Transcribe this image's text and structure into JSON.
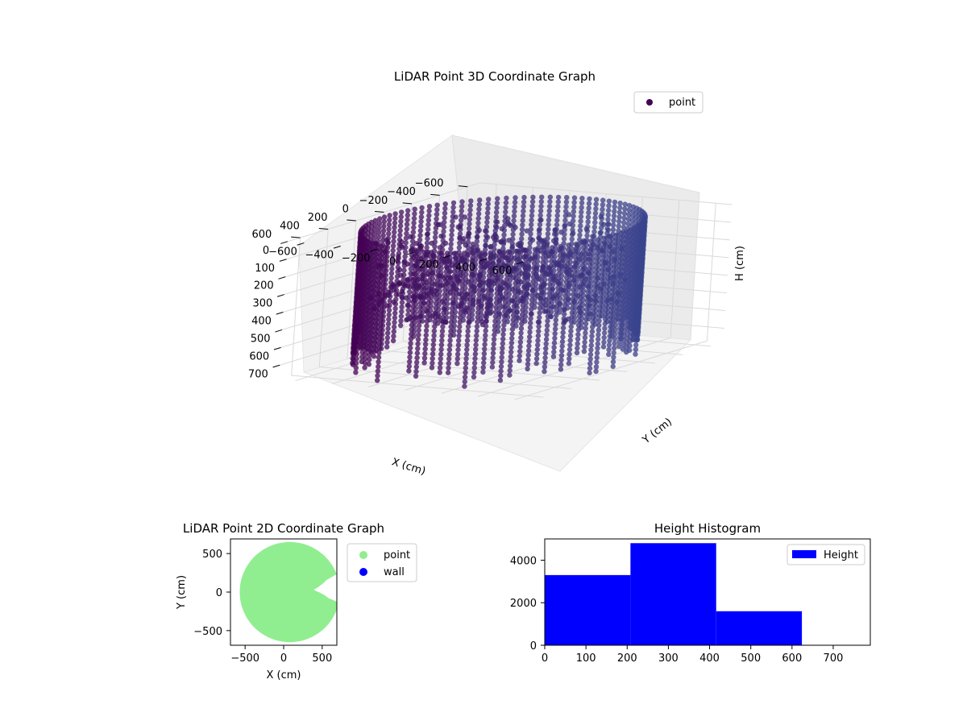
{
  "chart_data": [
    {
      "type": "scatter",
      "title": "LiDAR Point 3D Coordinate Graph",
      "xlabel": "X (cm)",
      "ylabel": "Y (cm)",
      "zlabel": "H (cm)",
      "x_ticks": [
        -600,
        -400,
        -200,
        0,
        200,
        400,
        600
      ],
      "y_ticks": [
        -600,
        -400,
        -200,
        0,
        200,
        400,
        600
      ],
      "z_ticks": [
        0,
        100,
        200,
        300,
        400,
        500,
        600,
        700
      ],
      "z_inverted": true,
      "legend": [
        "point"
      ],
      "legend_position": "top-right",
      "series": [
        {
          "name": "point",
          "color": "#440154",
          "description_values": {
            "radius_cm": 620,
            "height_range_cm": [
              0,
              780
            ],
            "center_cm": [
              50,
              0
            ]
          }
        }
      ],
      "grid": true
    },
    {
      "type": "scatter",
      "title": "LiDAR Point 2D Coordinate Graph",
      "xlabel": "X (cm)",
      "ylabel": "Y (cm)",
      "xlim": [
        -690,
        690
      ],
      "ylim": [
        -690,
        690
      ],
      "x_ticks": [
        -500,
        0,
        500
      ],
      "y_ticks": [
        -500,
        0,
        500
      ],
      "legend_position": "outside-right",
      "series": [
        {
          "name": "point",
          "color": "#90ee90"
        },
        {
          "name": "wall",
          "color": "#0000ff"
        }
      ],
      "grid": false
    },
    {
      "type": "bar",
      "title": "Height Histogram",
      "xlabel": "",
      "ylabel": "",
      "bins": [
        [
          0,
          208
        ],
        [
          208,
          416
        ],
        [
          416,
          624
        ]
      ],
      "values": [
        3300,
        4800,
        1600
      ],
      "xlim": [
        0,
        790
      ],
      "ylim": [
        0,
        5000
      ],
      "x_ticks": [
        0,
        100,
        200,
        300,
        400,
        500,
        600,
        700
      ],
      "y_ticks": [
        0,
        2000,
        4000
      ],
      "legend": [
        "Height"
      ],
      "legend_position": "top-right",
      "series": [
        {
          "name": "Height",
          "color": "#0000ff"
        }
      ],
      "grid": false
    }
  ]
}
